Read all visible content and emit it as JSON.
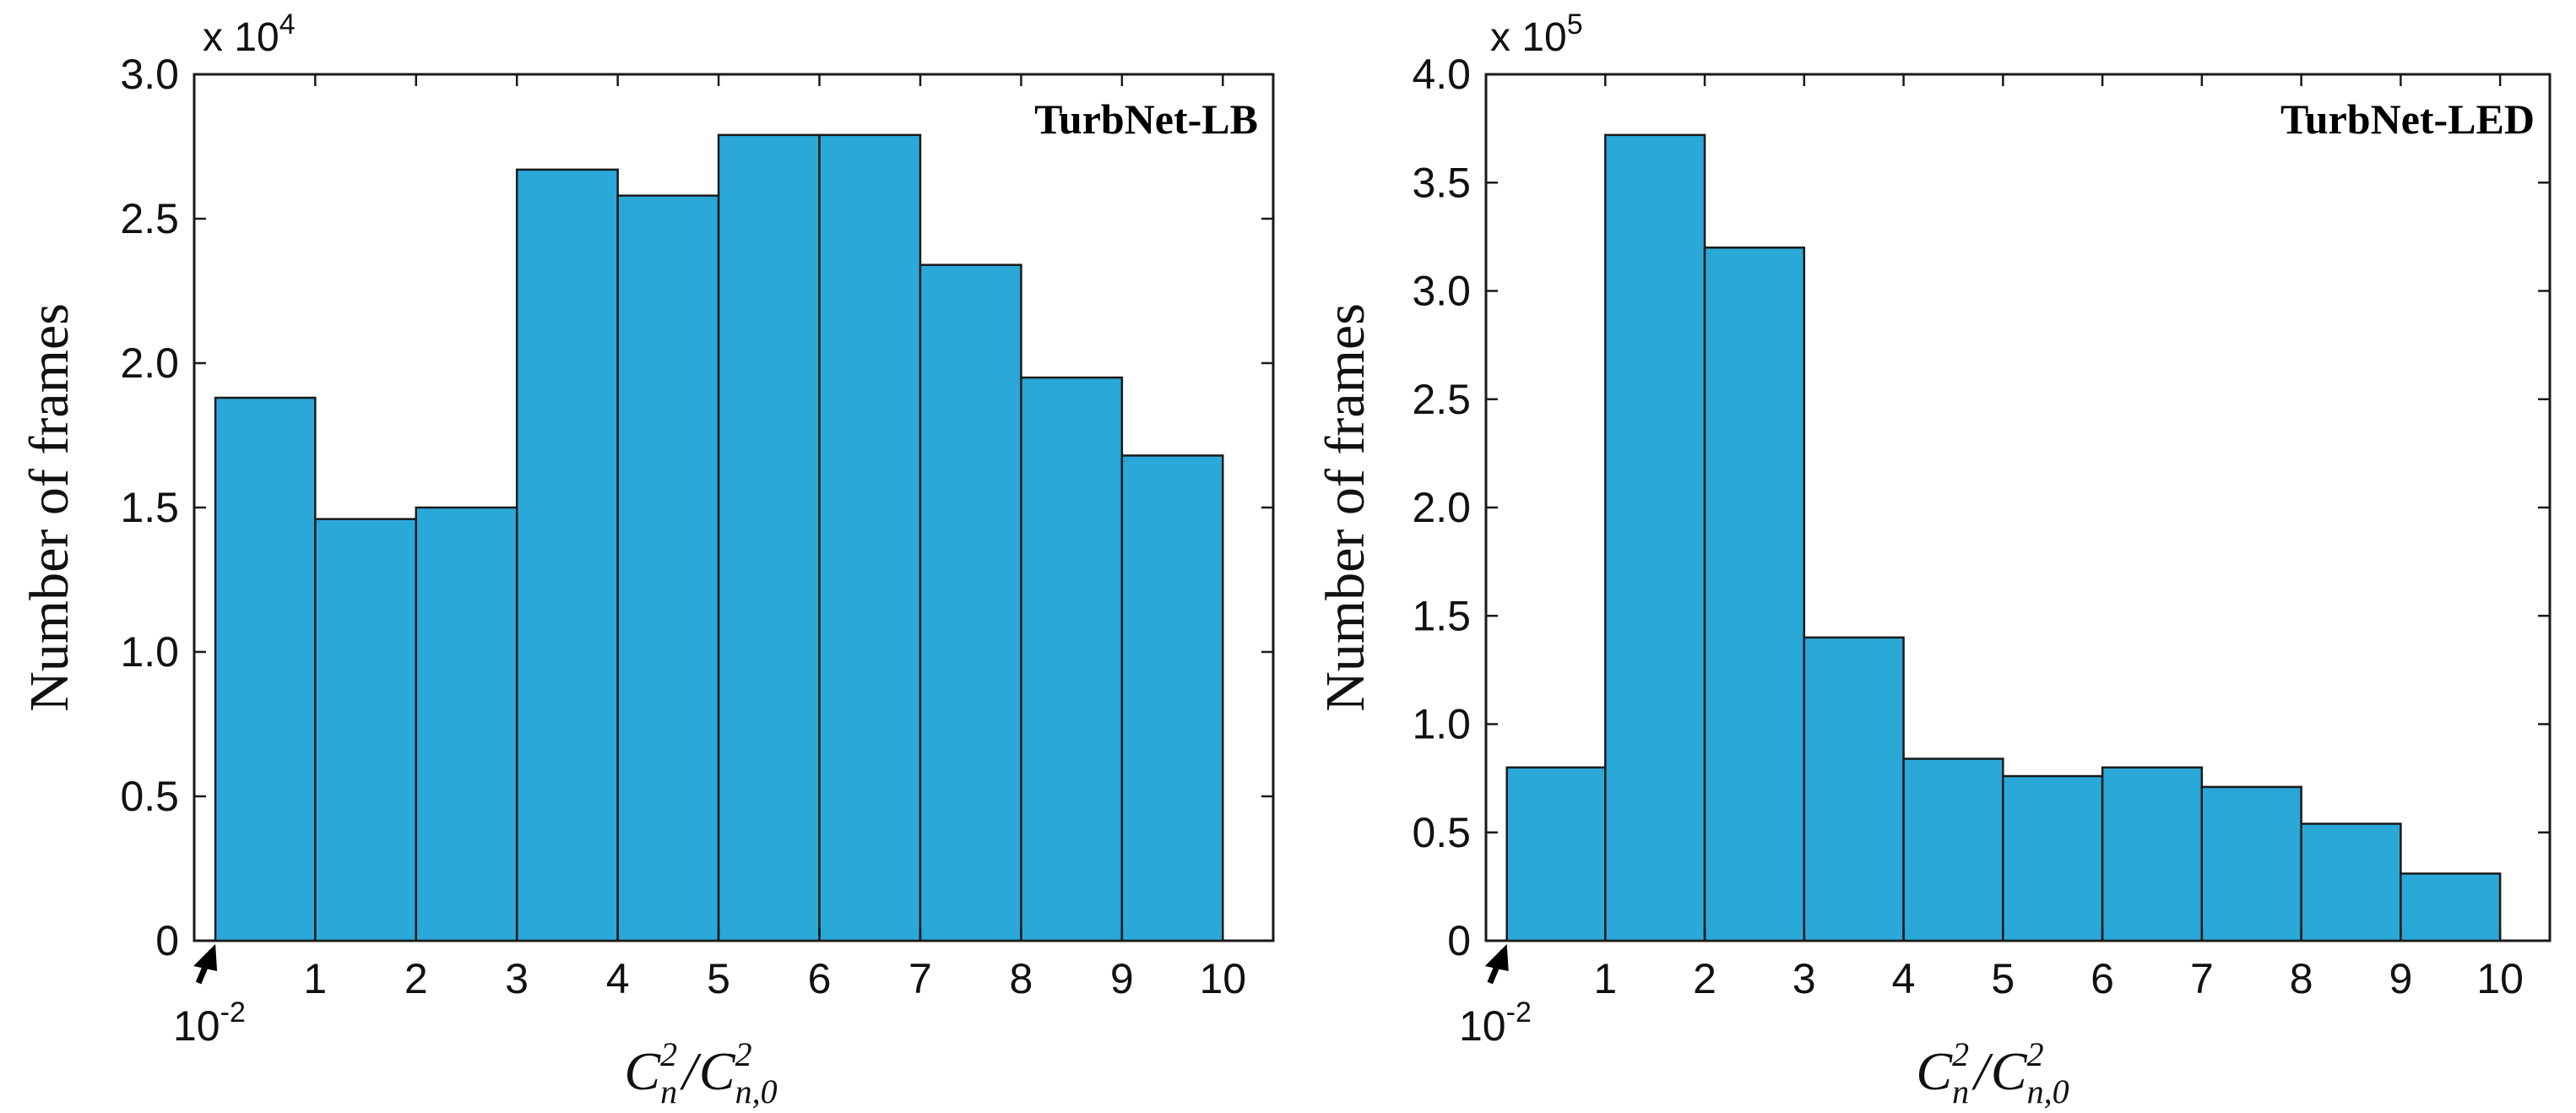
{
  "chart_data": [
    {
      "type": "bar",
      "title": "TurbNet-LB",
      "xlabel": {
        "base": "C",
        "num_sub": "n",
        "den_sub": "n,0",
        "sup": "2"
      },
      "ylabel": "Number of frames",
      "y_multiplier": {
        "prefix": "x 10",
        "exponent": "4"
      },
      "bin_edges": [
        0.01,
        1,
        2,
        3,
        4,
        5,
        6,
        7,
        8,
        9,
        10
      ],
      "x_tick_labels": [
        "1",
        "2",
        "3",
        "4",
        "5",
        "6",
        "7",
        "8",
        "9",
        "10"
      ],
      "x_start_label": {
        "base": "10",
        "exponent": "-2"
      },
      "values": [
        1.88,
        1.46,
        1.5,
        2.67,
        2.58,
        2.79,
        2.79,
        2.34,
        1.95,
        1.68
      ],
      "ylim": [
        0,
        3.0
      ],
      "y_ticks": [
        0,
        0.5,
        1.0,
        1.5,
        2.0,
        2.5,
        3.0
      ],
      "y_tick_labels": [
        "0",
        "0.5",
        "1.0",
        "1.5",
        "2.0",
        "2.5",
        "3.0"
      ],
      "xlim": [
        -0.2,
        10.5
      ],
      "bar_color": "#2aa8d8",
      "edge_color": "#1a1a1a"
    },
    {
      "type": "bar",
      "title": "TurbNet-LED",
      "xlabel": {
        "base": "C",
        "num_sub": "n",
        "den_sub": "n,0",
        "sup": "2"
      },
      "ylabel": "Number of frames",
      "y_multiplier": {
        "prefix": "x 10",
        "exponent": "5"
      },
      "bin_edges": [
        0.01,
        1,
        2,
        3,
        4,
        5,
        6,
        7,
        8,
        9,
        10
      ],
      "x_tick_labels": [
        "1",
        "2",
        "3",
        "4",
        "5",
        "6",
        "7",
        "8",
        "9",
        "10"
      ],
      "x_start_label": {
        "base": "10",
        "exponent": "-2"
      },
      "values": [
        0.8,
        3.72,
        3.2,
        1.4,
        0.84,
        0.76,
        0.8,
        0.71,
        0.54,
        0.31
      ],
      "ylim": [
        0,
        4.0
      ],
      "y_ticks": [
        0,
        0.5,
        1.0,
        1.5,
        2.0,
        2.5,
        3.0,
        3.5,
        4.0
      ],
      "y_tick_labels": [
        "0",
        "0.5",
        "1.0",
        "1.5",
        "2.0",
        "2.5",
        "3.0",
        "3.5",
        "4.0"
      ],
      "xlim": [
        -0.2,
        10.5
      ],
      "bar_color": "#2aa8d8",
      "edge_color": "#1a1a1a"
    }
  ]
}
